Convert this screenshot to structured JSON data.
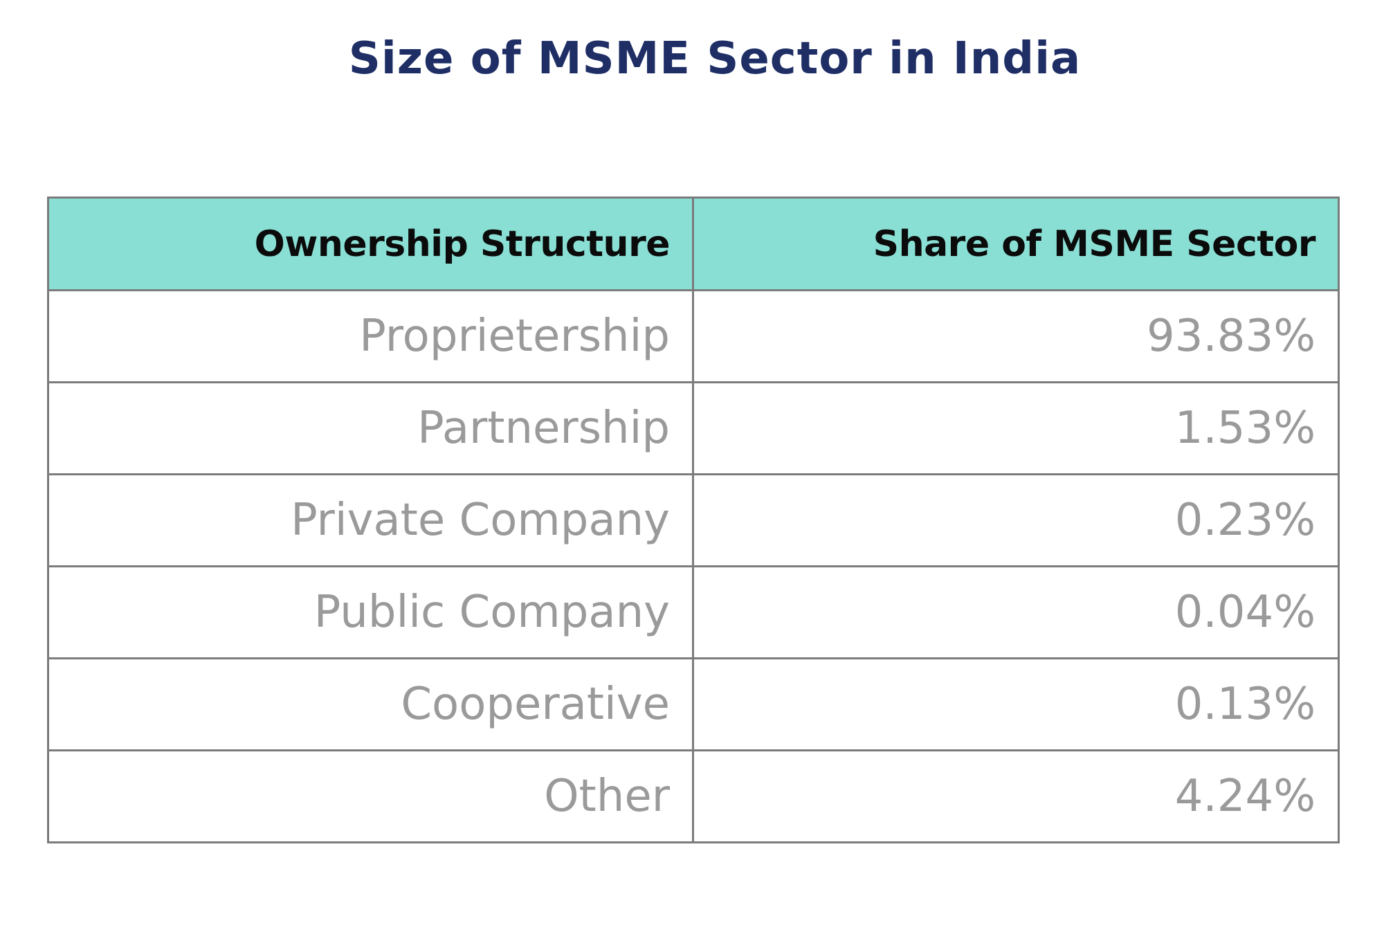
{
  "chart_data": {
    "type": "table",
    "title": "Size of MSME Sector in India",
    "columns": [
      "Ownership Structure",
      "Share of MSME Sector"
    ],
    "rows": [
      {
        "label": "Proprietership",
        "value": "93.83%"
      },
      {
        "label": "Partnership",
        "value": "1.53%"
      },
      {
        "label": "Private Company",
        "value": "0.23%"
      },
      {
        "label": "Public Company",
        "value": "0.04%"
      },
      {
        "label": "Cooperative",
        "value": "0.13%"
      },
      {
        "label": "Other",
        "value": "4.24%"
      }
    ],
    "colors": {
      "title": "#1f2f66",
      "header_background": "#8adfd5",
      "header_text": "#0b0b0b",
      "cell_text": "#9a9a9a",
      "border": "#7b7b7b"
    }
  }
}
